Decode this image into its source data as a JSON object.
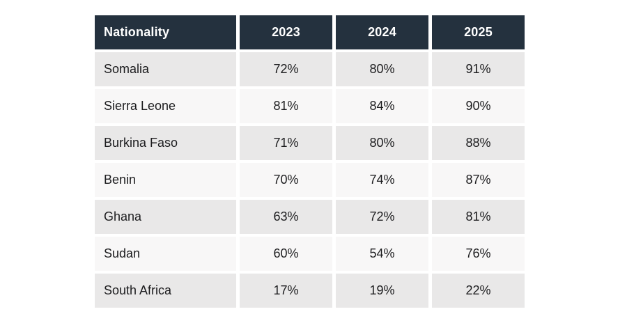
{
  "colors": {
    "page_bg": "#ffffff",
    "header_bg": "#24313e",
    "header_text": "#ffffff",
    "row_odd_bg": "#e9e8e8",
    "row_even_bg": "#f8f7f7",
    "cell_text": "#1c1c1e"
  },
  "chart_data": {
    "type": "table",
    "columns": [
      "Nationality",
      "2023",
      "2024",
      "2025"
    ],
    "rows": [
      [
        "Somalia",
        "72%",
        "80%",
        "91%"
      ],
      [
        "Sierra Leone",
        "81%",
        "84%",
        "90%"
      ],
      [
        "Burkina Faso",
        "71%",
        "80%",
        "88%"
      ],
      [
        "Benin",
        "70%",
        "74%",
        "87%"
      ],
      [
        "Ghana",
        "63%",
        "72%",
        "81%"
      ],
      [
        "Sudan",
        "60%",
        "54%",
        "76%"
      ],
      [
        "South Africa",
        "17%",
        "19%",
        "22%"
      ]
    ]
  }
}
